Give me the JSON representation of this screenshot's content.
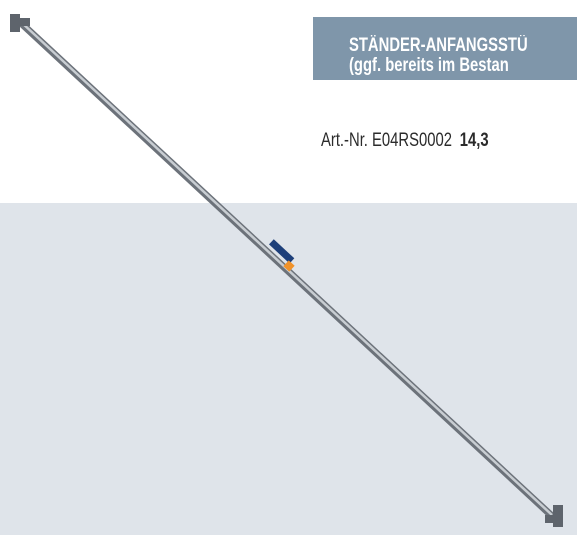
{
  "header": {
    "title_lines": [
      "STÄNDER-ANFANGSSTÜ",
      "(ggf. bereits im Bestan"
    ]
  },
  "article": {
    "number": "Art.-Nr. E04RS0002",
    "weight": "14,3"
  }
}
